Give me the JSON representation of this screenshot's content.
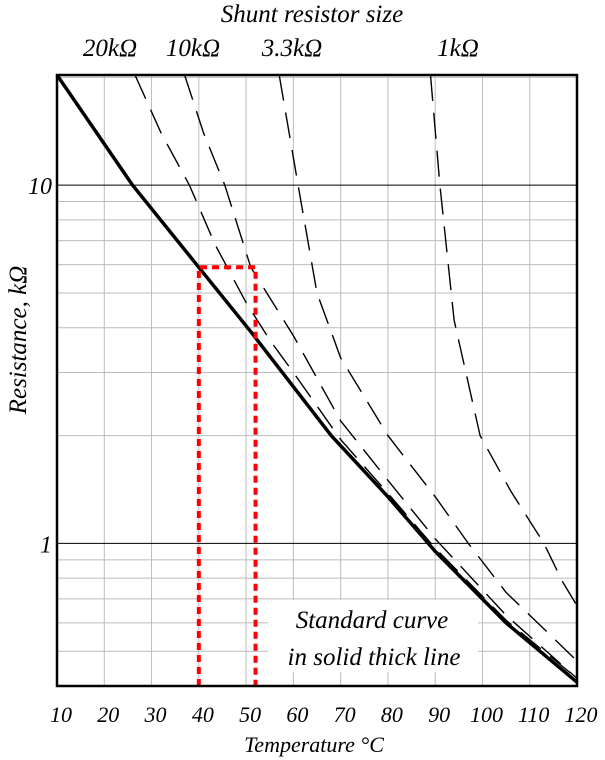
{
  "chart_data": {
    "type": "line",
    "title": "Shunt resistor size",
    "xlabel": "Temperature °C",
    "ylabel": "Resistance, kΩ",
    "xlim": [
      10,
      120
    ],
    "ylim": [
      0.4,
      20.3
    ],
    "yscale": "log",
    "grid": true,
    "x_ticks": [
      10,
      20,
      30,
      40,
      50,
      60,
      70,
      80,
      90,
      100,
      110,
      120
    ],
    "y_tick_labels": [
      {
        "value": 10,
        "label": "10"
      },
      {
        "value": 1,
        "label": "1"
      }
    ],
    "series_labels_top": [
      {
        "label": "20kΩ",
        "series": "20k"
      },
      {
        "label": "10kΩ",
        "series": "10k"
      },
      {
        "label": "3.3kΩ",
        "series": "3.3k"
      },
      {
        "label": "1kΩ",
        "series": "1k"
      }
    ],
    "series": [
      {
        "id": "standard",
        "style": "solid-thick",
        "points": [
          [
            10,
            20.3
          ],
          [
            26,
            10
          ],
          [
            40,
            5.9
          ],
          [
            51,
            3.9
          ],
          [
            68,
            2.0
          ],
          [
            80,
            1.35
          ],
          [
            90,
            0.95
          ],
          [
            105,
            0.6
          ],
          [
            120,
            0.41
          ]
        ]
      },
      {
        "id": "20k",
        "style": "dashed",
        "points": [
          [
            26.5,
            20.3
          ],
          [
            32,
            14
          ],
          [
            38,
            10
          ],
          [
            43.5,
            6.8
          ],
          [
            50,
            4.7
          ],
          [
            55,
            3.7
          ],
          [
            60,
            3.0
          ],
          [
            70,
            1.95
          ],
          [
            80,
            1.38
          ],
          [
            90,
            0.97
          ],
          [
            105,
            0.61
          ],
          [
            120,
            0.42
          ]
        ]
      },
      {
        "id": "10k",
        "style": "dashed",
        "points": [
          [
            37,
            20.3
          ],
          [
            41,
            14
          ],
          [
            45.5,
            10
          ],
          [
            51,
            5.9
          ],
          [
            60,
            3.8
          ],
          [
            70,
            2.2
          ],
          [
            80,
            1.5
          ],
          [
            90,
            1.03
          ],
          [
            105,
            0.63
          ],
          [
            120,
            0.42
          ]
        ]
      },
      {
        "id": "3.3k",
        "style": "dashed",
        "points": [
          [
            57,
            20.3
          ],
          [
            61,
            10
          ],
          [
            65,
            5.0
          ],
          [
            70,
            3.3
          ],
          [
            80,
            2.0
          ],
          [
            90,
            1.35
          ],
          [
            97,
            1.0
          ],
          [
            105,
            0.73
          ],
          [
            120,
            0.47
          ]
        ]
      },
      {
        "id": "1k",
        "style": "dashed",
        "points": [
          [
            89,
            20.3
          ],
          [
            91,
            10
          ],
          [
            94,
            4.2
          ],
          [
            99.5,
            2.0
          ],
          [
            106,
            1.4
          ],
          [
            113,
            1.0
          ],
          [
            117,
            0.78
          ],
          [
            120,
            0.67
          ]
        ]
      }
    ],
    "highlight_box": {
      "x_range": [
        40,
        52
      ],
      "y_top": 5.9,
      "color": "#ff0000",
      "style": "dotted"
    },
    "annotation": [
      "Standard curve",
      "in solid thick line"
    ]
  }
}
